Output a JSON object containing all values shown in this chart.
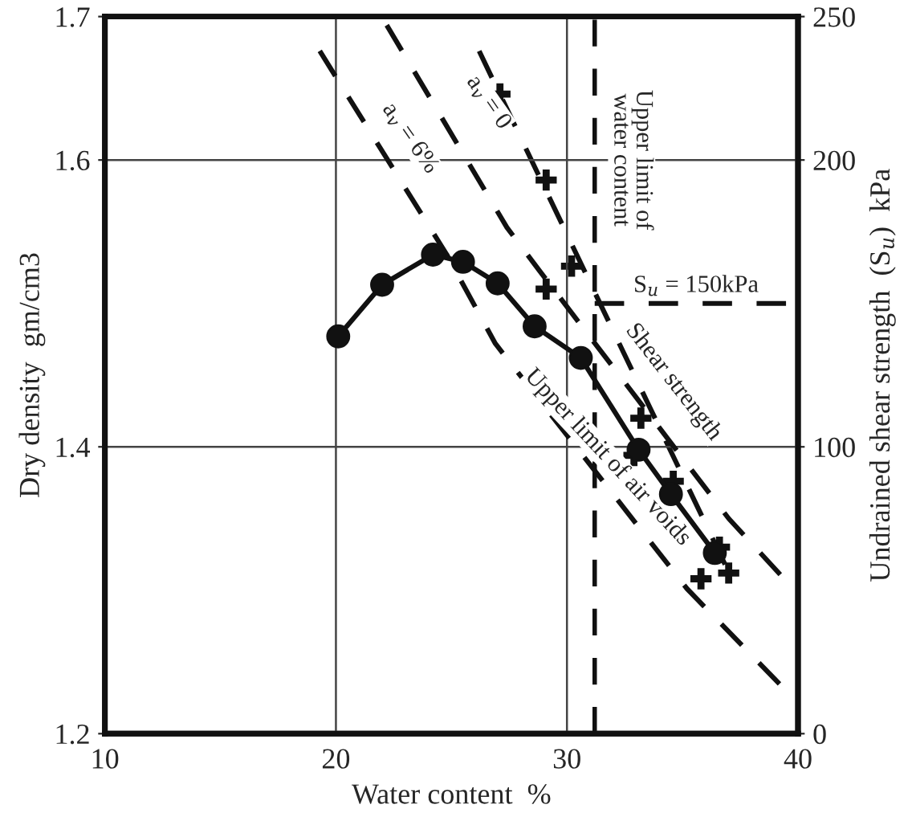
{
  "chart_data": {
    "type": "line",
    "xlabel": "Water content  %",
    "ylabel": "Dry density  gm/cm3",
    "y2label": "Undrained shear strength  (S$_{u}$)  kPa",
    "xlim": [
      10,
      40
    ],
    "xticks": [
      10,
      20,
      30,
      40
    ],
    "ylim": [
      1.2,
      1.7
    ],
    "yticks": [
      1.2,
      1.4,
      1.6,
      1.7
    ],
    "y2lim": [
      0,
      250
    ],
    "y2ticks": [
      0,
      100,
      200,
      250
    ],
    "grid": true,
    "legend": false,
    "series": [
      {
        "type": "line",
        "color": "#111111",
        "marker": "circle",
        "line_style": "solid",
        "x": [
          20.1,
          22.0,
          24.2,
          25.5,
          27.0,
          28.6,
          30.6,
          33.1,
          34.5,
          36.4
        ],
        "values": [
          1.477,
          1.513,
          1.534,
          1.529,
          1.514,
          1.484,
          1.462,
          1.398,
          1.367,
          1.326
        ]
      },
      {
        "type": "line",
        "color": "#111111",
        "line_style": "dashed",
        "x": [
          22.2,
          27.4,
          28.8,
          37.0,
          39.8
        ],
        "values": [
          1.694,
          1.553,
          1.523,
          1.35,
          1.301
        ]
      },
      {
        "type": "line",
        "color": "#111111",
        "line_style": "dashed",
        "x": [
          19.3,
          24.8,
          26.9,
          35.2,
          39.9
        ],
        "values": [
          1.676,
          1.534,
          1.472,
          1.301,
          1.223
        ]
      },
      {
        "type": "line",
        "color": "#111111",
        "line_style": "dashed",
        "axis": "y2",
        "x": [
          26.2,
          36.9
        ],
        "values": [
          238,
          58
        ]
      },
      {
        "type": "scatter",
        "color": "#111111",
        "marker": "cross",
        "axis": "y2",
        "x": [
          27.1,
          29.1,
          29.1,
          30.2,
          32.9,
          33.2,
          34.6,
          35.8,
          36.6,
          37.0
        ],
        "values": [
          223,
          193,
          155,
          163,
          97,
          110,
          88,
          54,
          65,
          56
        ]
      },
      {
        "type": "line",
        "color": "#111111",
        "line_style": "dashed",
        "axis": "y2",
        "x": [
          31.2,
          40
        ],
        "values": [
          150,
          150
        ]
      }
    ],
    "ref_lines": [
      {
        "axis": "x",
        "value": 31.2,
        "color": "#111111",
        "line_style": "dashed"
      }
    ],
    "annotations": [
      "a$_{v}$ = 6%",
      "a$_{v}$ = 0",
      "Upper limit of\nwater content",
      "S$_{u}$ = 150kPa",
      "Shear strength",
      "Upper limit of air voids"
    ]
  }
}
